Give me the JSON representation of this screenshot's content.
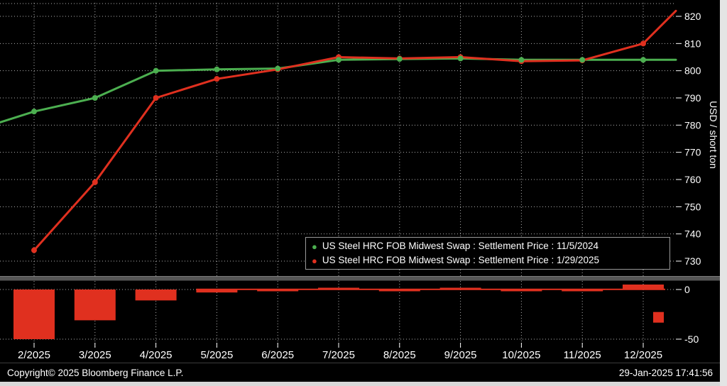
{
  "chart_data": {
    "type": "line",
    "title": "",
    "ylabel": "USD / short ton",
    "categories": [
      "2/2025",
      "3/2025",
      "4/2025",
      "5/2025",
      "6/2025",
      "7/2025",
      "8/2025",
      "9/2025",
      "10/2025",
      "11/2025",
      "12/2025"
    ],
    "y_ticks": [
      820,
      810,
      800,
      790,
      780,
      770,
      760,
      750,
      740,
      730
    ],
    "ylim": [
      728,
      824
    ],
    "grid": "dotted",
    "legend_position": "inside-lower-right",
    "series": [
      {
        "name": "US Steel HRC FOB Midwest Swap : Settlement Price : 11/5/2024",
        "color": "#4caf50",
        "edge_start": 781,
        "values": [
          785,
          790,
          800,
          800.5,
          800.8,
          804,
          804.3,
          804.5,
          804,
          804,
          804
        ],
        "edge_end": 804
      },
      {
        "name": "US Steel HRC FOB Midwest Swap : Settlement Price : 1/29/2025",
        "color": "#e0301f",
        "edge_start": null,
        "values": [
          734,
          759,
          790,
          797,
          800.5,
          805,
          804.5,
          805,
          803.5,
          803.8,
          810
        ],
        "edge_end": 822
      }
    ],
    "spread_bars": {
      "color": "#e0301f",
      "values": [
        -50,
        -31,
        -11,
        -3,
        -1,
        0.8,
        -0.5,
        0.8,
        -1,
        -1.5,
        5
      ],
      "y_ticks": [
        0,
        -50
      ],
      "marker_square_value": -28
    }
  },
  "footer": {
    "copyright": "Copyright© 2025 Bloomberg Finance L.P.",
    "timestamp": "29-Jan-2025 17:41:56"
  }
}
